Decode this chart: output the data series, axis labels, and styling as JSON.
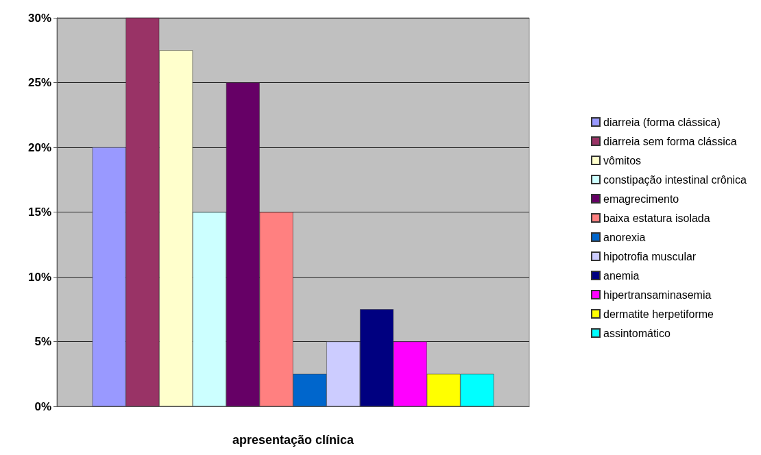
{
  "chart_data": {
    "type": "bar",
    "xlabel": "apresentação clínica",
    "categories": [
      null
    ],
    "series": [
      {
        "name": "diarreia (forma clássica)",
        "color": "#9999ff",
        "values": [
          20
        ]
      },
      {
        "name": "diarreia sem forma clássica",
        "color": "#993366",
        "values": [
          30
        ]
      },
      {
        "name": "vômitos",
        "color": "#ffffcc",
        "values": [
          27.5
        ]
      },
      {
        "name": "constipação intestinal crônica",
        "color": "#ccffff",
        "values": [
          15
        ]
      },
      {
        "name": "emagrecimento",
        "color": "#660066",
        "values": [
          25
        ]
      },
      {
        "name": "baixa estatura isolada",
        "color": "#ff8080",
        "values": [
          15
        ]
      },
      {
        "name": "anorexia",
        "color": "#0066cc",
        "values": [
          2.5
        ]
      },
      {
        "name": "hipotrofia muscular",
        "color": "#ccccff",
        "values": [
          5
        ]
      },
      {
        "name": "anemia",
        "color": "#000080",
        "values": [
          7.5
        ]
      },
      {
        "name": "hipertransaminasemia",
        "color": "#ff00ff",
        "values": [
          5
        ]
      },
      {
        "name": "dermatite herpetiforme",
        "color": "#ffff00",
        "values": [
          2.5
        ]
      },
      {
        "name": "assintomático",
        "color": "#00ffff",
        "values": [
          2.5
        ]
      }
    ],
    "ylim": [
      0,
      30
    ],
    "yticks": [
      {
        "value": 0,
        "label": "0%"
      },
      {
        "value": 5,
        "label": "5%"
      },
      {
        "value": 10,
        "label": "10%"
      },
      {
        "value": 15,
        "label": "15%"
      },
      {
        "value": 20,
        "label": "20%"
      },
      {
        "value": 25,
        "label": "25%"
      },
      {
        "value": 30,
        "label": "30%"
      }
    ],
    "grid": "y",
    "legend": "right"
  }
}
